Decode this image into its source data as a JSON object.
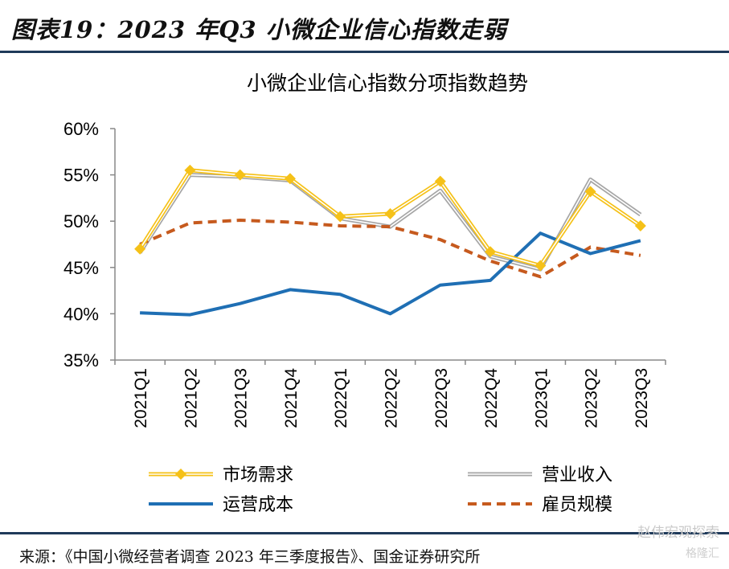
{
  "header": {
    "figure_title": "图表19：2023 年Q3 小微企业信心指数走弱"
  },
  "footer": {
    "source": "来源：《中国小微经营者调查 2023 年三季度报告》、国金证券研究所",
    "watermark": "赵伟宏观探索",
    "watermark_sub": "格隆汇"
  },
  "colors": {
    "market_demand": "#F5C118",
    "revenue": "#A6A6A6",
    "operating_cost": "#1F6FB4",
    "employment": "#C65A1E",
    "rule": "#1F3A5A"
  },
  "chart_data": {
    "type": "line",
    "title": "小微企业信心指数分项指数趋势",
    "categories": [
      "2021Q1",
      "2021Q2",
      "2021Q3",
      "2021Q4",
      "2022Q1",
      "2022Q2",
      "2022Q3",
      "2022Q4",
      "2023Q1",
      "2023Q2",
      "2023Q3"
    ],
    "ylim": [
      35,
      60
    ],
    "yticks": [
      "35%",
      "40%",
      "45%",
      "50%",
      "55%",
      "60%"
    ],
    "legend_position": "bottom",
    "grid": false,
    "series": [
      {
        "name": "市场需求",
        "style": "double-line-diamond",
        "values": [
          47.0,
          55.5,
          55.0,
          54.6,
          50.5,
          50.8,
          54.3,
          46.7,
          45.2,
          53.2,
          49.5
        ]
      },
      {
        "name": "营业收入",
        "style": "double-line",
        "values": [
          46.6,
          55.0,
          54.8,
          54.4,
          50.3,
          49.4,
          53.3,
          46.2,
          44.8,
          54.5,
          50.7
        ]
      },
      {
        "name": "运营成本",
        "style": "solid",
        "values": [
          40.1,
          39.9,
          41.1,
          42.6,
          42.1,
          40.0,
          43.1,
          43.6,
          48.7,
          46.5,
          47.9
        ]
      },
      {
        "name": "雇员规模",
        "style": "dashed",
        "values": [
          47.5,
          49.8,
          50.1,
          49.9,
          49.5,
          49.4,
          48.0,
          45.7,
          44.0,
          47.2,
          46.3
        ]
      }
    ]
  }
}
